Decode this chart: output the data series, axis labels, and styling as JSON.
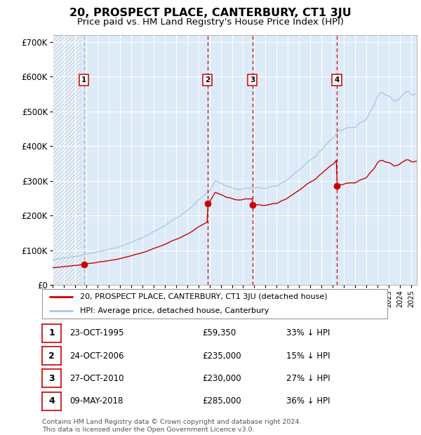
{
  "title": "20, PROSPECT PLACE, CANTERBURY, CT1 3JU",
  "subtitle": "Price paid vs. HM Land Registry's House Price Index (HPI)",
  "title_fontsize": 11.5,
  "subtitle_fontsize": 9.5,
  "ylim": [
    0,
    720000
  ],
  "yticks": [
    0,
    100000,
    200000,
    300000,
    400000,
    500000,
    600000,
    700000
  ],
  "ytick_labels": [
    "£0",
    "£100K",
    "£200K",
    "£300K",
    "£400K",
    "£500K",
    "£600K",
    "£700K"
  ],
  "hpi_color": "#a8c8e8",
  "price_color": "#cc0000",
  "plot_bg_color": "#ddeaf7",
  "legend_label_price": "20, PROSPECT PLACE, CANTERBURY, CT1 3JU (detached house)",
  "legend_label_hpi": "HPI: Average price, detached house, Canterbury",
  "sales": [
    {
      "num": 1,
      "price": 59350,
      "x": 1995.81
    },
    {
      "num": 2,
      "price": 235000,
      "x": 2006.81
    },
    {
      "num": 3,
      "price": 230000,
      "x": 2010.82
    },
    {
      "num": 4,
      "price": 285000,
      "x": 2018.36
    }
  ],
  "table_rows": [
    {
      "num": 1,
      "date": "23-OCT-1995",
      "price": "£59,350",
      "hpi": "33% ↓ HPI"
    },
    {
      "num": 2,
      "date": "24-OCT-2006",
      "price": "£235,000",
      "hpi": "15% ↓ HPI"
    },
    {
      "num": 3,
      "date": "27-OCT-2010",
      "price": "£230,000",
      "hpi": "27% ↓ HPI"
    },
    {
      "num": 4,
      "date": "09-MAY-2018",
      "price": "£285,000",
      "hpi": "36% ↓ HPI"
    }
  ],
  "footer": "Contains HM Land Registry data © Crown copyright and database right 2024.\nThis data is licensed under the Open Government Licence v3.0.",
  "xmin": 1993.0,
  "xmax": 2025.5,
  "hpi_anchor_points": [
    [
      1993.0,
      72000
    ],
    [
      1995.0,
      82000
    ],
    [
      1997.0,
      95000
    ],
    [
      1999.0,
      110000
    ],
    [
      2001.0,
      135000
    ],
    [
      2003.0,
      170000
    ],
    [
      2005.0,
      215000
    ],
    [
      2007.0,
      270000
    ],
    [
      2007.5,
      300000
    ],
    [
      2008.5,
      285000
    ],
    [
      2009.5,
      275000
    ],
    [
      2010.0,
      278000
    ],
    [
      2011.0,
      280000
    ],
    [
      2012.0,
      278000
    ],
    [
      2013.0,
      285000
    ],
    [
      2014.0,
      305000
    ],
    [
      2015.0,
      330000
    ],
    [
      2016.0,
      360000
    ],
    [
      2017.0,
      390000
    ],
    [
      2018.0,
      420000
    ],
    [
      2018.5,
      445000
    ],
    [
      2019.0,
      450000
    ],
    [
      2020.0,
      455000
    ],
    [
      2021.0,
      480000
    ],
    [
      2021.5,
      510000
    ],
    [
      2022.0,
      540000
    ],
    [
      2022.5,
      555000
    ],
    [
      2023.0,
      545000
    ],
    [
      2023.5,
      530000
    ],
    [
      2024.0,
      540000
    ],
    [
      2024.5,
      555000
    ],
    [
      2025.0,
      555000
    ],
    [
      2025.5,
      550000
    ]
  ]
}
